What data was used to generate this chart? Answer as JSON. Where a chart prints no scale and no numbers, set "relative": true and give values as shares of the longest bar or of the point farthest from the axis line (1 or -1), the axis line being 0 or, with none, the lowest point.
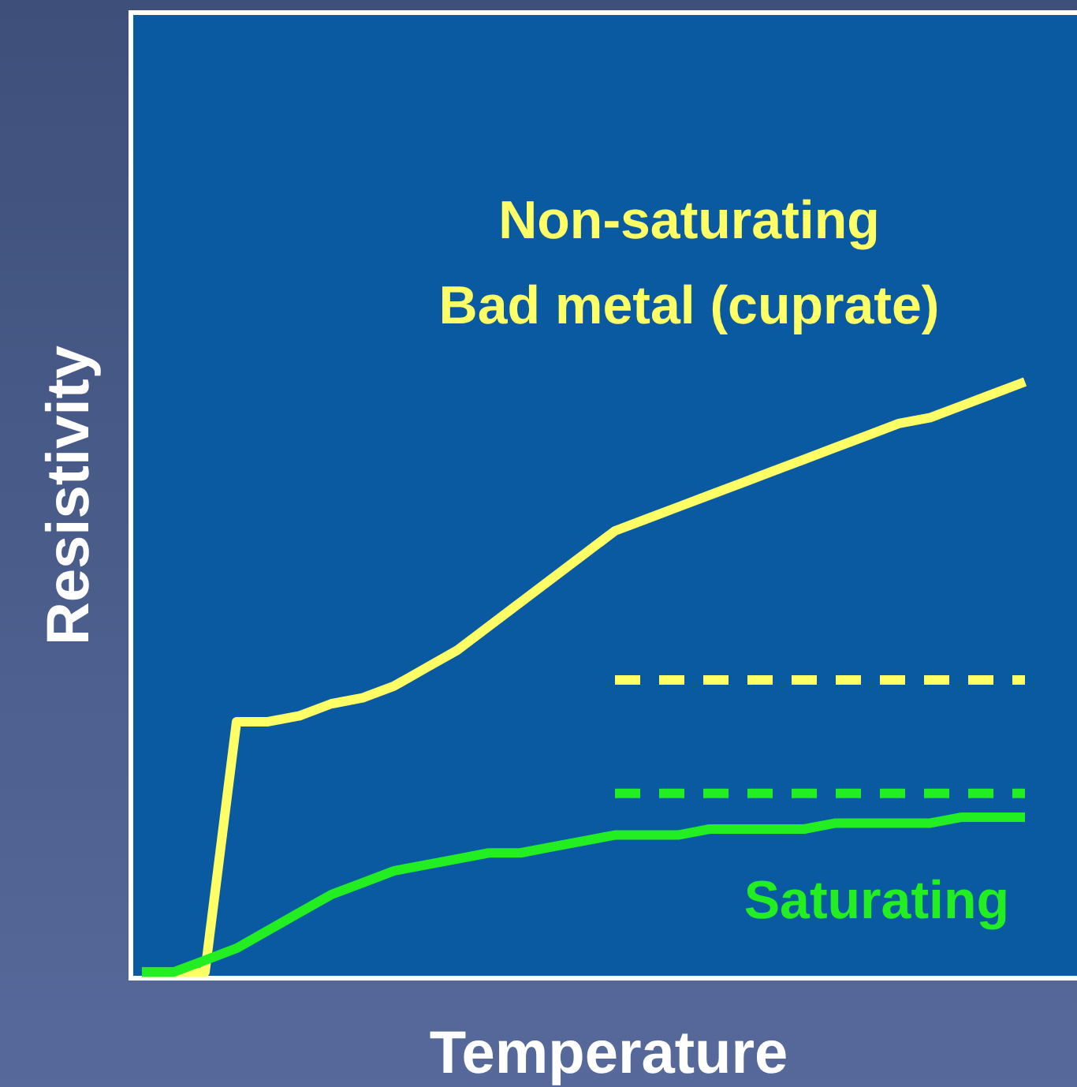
{
  "chart_data": {
    "type": "line",
    "relative": true,
    "xlabel": "Temperature",
    "ylabel": "Resistivity",
    "categories": [
      null,
      null,
      null,
      null,
      null,
      null,
      null,
      null,
      null,
      null,
      null,
      null,
      null,
      null,
      null,
      null,
      null,
      null,
      null,
      null,
      null,
      null,
      null,
      null,
      null,
      null,
      null,
      null,
      null
    ],
    "series": [
      {
        "name": "Non-saturating\nBad metal (cuprate)",
        "color": "#ffff66",
        "values": [
          0.01,
          0.01,
          0.01,
          0.43,
          0.43,
          0.44,
          0.46,
          0.47,
          0.49,
          0.52,
          0.55,
          0.59,
          0.63,
          0.67,
          0.71,
          0.75,
          0.77,
          0.79,
          0.81,
          0.83,
          0.85,
          0.87,
          0.89,
          0.91,
          0.93,
          0.94,
          0.96,
          0.98,
          1.0
        ]
      },
      {
        "name": "Saturating",
        "color": "#22ee22",
        "values": [
          0.01,
          0.01,
          0.03,
          0.05,
          0.08,
          0.11,
          0.14,
          0.16,
          0.18,
          0.19,
          0.2,
          0.21,
          0.21,
          0.22,
          0.23,
          0.24,
          0.24,
          0.24,
          0.25,
          0.25,
          0.25,
          0.25,
          0.26,
          0.26,
          0.26,
          0.26,
          0.27,
          0.27,
          0.27
        ]
      },
      {
        "color": "#ffff66",
        "line_style": "dashed",
        "values": [
          null,
          null,
          null,
          null,
          null,
          null,
          null,
          null,
          null,
          null,
          null,
          null,
          null,
          null,
          null,
          0.5,
          0.5,
          0.5,
          0.5,
          0.5,
          0.5,
          0.5,
          0.5,
          0.5,
          0.5,
          0.5,
          0.5,
          0.5,
          0.5
        ]
      },
      {
        "color": "#22ee22",
        "line_style": "dashed",
        "values": [
          null,
          null,
          null,
          null,
          null,
          null,
          null,
          null,
          null,
          null,
          null,
          null,
          null,
          null,
          null,
          0.31,
          0.31,
          0.31,
          0.31,
          0.31,
          0.31,
          0.31,
          0.31,
          0.31,
          0.31,
          0.31,
          0.31,
          0.31,
          0.31
        ]
      }
    ]
  }
}
